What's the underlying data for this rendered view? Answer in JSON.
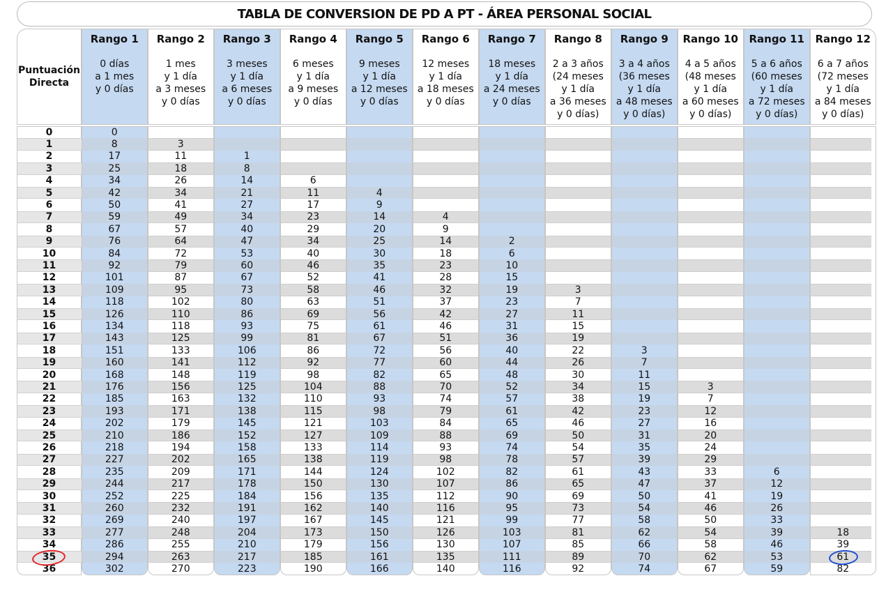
{
  "title": "TABLA DE CONVERSION DE PD A PT - ÁREA PERSONAL SOCIAL",
  "pd_header": [
    "Puntuación",
    "Directa"
  ],
  "pd": [
    "0",
    "1",
    "2",
    "3",
    "4",
    "5",
    "6",
    "7",
    "8",
    "9",
    "10",
    "11",
    "12",
    "13",
    "14",
    "15",
    "16",
    "17",
    "18",
    "19",
    "20",
    "21",
    "22",
    "23",
    "24",
    "25",
    "26",
    "27",
    "28",
    "29",
    "30",
    "31",
    "32",
    "33",
    "34",
    "35",
    "36"
  ],
  "columns": [
    {
      "name": "Rango 1",
      "age": [
        "0 días",
        "a 1 mes",
        "y 0 días"
      ],
      "start": 0,
      "values": [
        "0",
        "8",
        "17",
        "25",
        "34",
        "42",
        "50",
        "59",
        "67",
        "76",
        "84",
        "92",
        "101",
        "109",
        "118",
        "126",
        "134",
        "143",
        "151",
        "160",
        "168",
        "176",
        "185",
        "193",
        "202",
        "210",
        "218",
        "227",
        "235",
        "244",
        "252",
        "260",
        "269",
        "277",
        "286",
        "294",
        "302"
      ]
    },
    {
      "name": "Rango 2",
      "age": [
        "1 mes",
        "y 1 día",
        "a 3 meses",
        "y 0 días"
      ],
      "start": 1,
      "values": [
        "3",
        "11",
        "18",
        "26",
        "34",
        "41",
        "49",
        "57",
        "64",
        "72",
        "79",
        "87",
        "95",
        "102",
        "110",
        "118",
        "125",
        "133",
        "141",
        "148",
        "156",
        "163",
        "171",
        "179",
        "186",
        "194",
        "202",
        "209",
        "217",
        "225",
        "232",
        "240",
        "248",
        "255",
        "263",
        "270"
      ]
    },
    {
      "name": "Rango 3",
      "age": [
        "3 meses",
        "y 1 día",
        "a 6 meses",
        "y 0 días"
      ],
      "start": 2,
      "values": [
        "1",
        "8",
        "14",
        "21",
        "27",
        "34",
        "40",
        "47",
        "53",
        "60",
        "67",
        "73",
        "80",
        "86",
        "93",
        "99",
        "106",
        "112",
        "119",
        "125",
        "132",
        "138",
        "145",
        "152",
        "158",
        "165",
        "171",
        "178",
        "184",
        "191",
        "197",
        "204",
        "210",
        "217",
        "223"
      ]
    },
    {
      "name": "Rango 4",
      "age": [
        "6 meses",
        "y 1 día",
        "a 9 meses",
        "y 0 días"
      ],
      "start": 4,
      "values": [
        "6",
        "11",
        "17",
        "23",
        "29",
        "34",
        "40",
        "46",
        "52",
        "58",
        "63",
        "69",
        "75",
        "81",
        "86",
        "92",
        "98",
        "104",
        "110",
        "115",
        "121",
        "127",
        "133",
        "138",
        "144",
        "150",
        "156",
        "162",
        "167",
        "173",
        "179",
        "185",
        "190"
      ]
    },
    {
      "name": "Rango 5",
      "age": [
        "9 meses",
        "y 1 día",
        "a 12 meses",
        "y 0 días"
      ],
      "start": 5,
      "values": [
        "4",
        "9",
        "14",
        "20",
        "25",
        "30",
        "35",
        "41",
        "46",
        "51",
        "56",
        "61",
        "67",
        "72",
        "77",
        "82",
        "88",
        "93",
        "98",
        "103",
        "109",
        "114",
        "119",
        "124",
        "130",
        "135",
        "140",
        "145",
        "150",
        "156",
        "161",
        "166"
      ]
    },
    {
      "name": "Rango 6",
      "age": [
        "12 meses",
        "y 1 día",
        "a 18 meses",
        "y 0 días"
      ],
      "start": 7,
      "values": [
        "4",
        "9",
        "14",
        "18",
        "23",
        "28",
        "32",
        "37",
        "42",
        "46",
        "51",
        "56",
        "60",
        "65",
        "70",
        "74",
        "79",
        "84",
        "88",
        "93",
        "98",
        "102",
        "107",
        "112",
        "116",
        "121",
        "126",
        "130",
        "135",
        "140"
      ]
    },
    {
      "name": "Rango 7",
      "age": [
        "18 meses",
        "y 1 día",
        "a 24 meses",
        "y 0 días"
      ],
      "start": 9,
      "values": [
        "2",
        "6",
        "10",
        "15",
        "19",
        "23",
        "27",
        "31",
        "36",
        "40",
        "44",
        "48",
        "52",
        "57",
        "61",
        "65",
        "69",
        "74",
        "78",
        "82",
        "86",
        "90",
        "95",
        "99",
        "103",
        "107",
        "111",
        "116"
      ]
    },
    {
      "name": "Rango 8",
      "age": [
        "2 a 3 años",
        "(24 meses",
        "y 1 día",
        "a 36 meses",
        "y 0 días)"
      ],
      "start": 13,
      "values": [
        "3",
        "7",
        "11",
        "15",
        "19",
        "22",
        "26",
        "30",
        "34",
        "38",
        "42",
        "46",
        "50",
        "54",
        "57",
        "61",
        "65",
        "69",
        "73",
        "77",
        "81",
        "85",
        "89",
        "92"
      ]
    },
    {
      "name": "Rango 9",
      "age": [
        "3 a 4 años",
        "(36 meses",
        "y 1 día",
        "a 48 meses",
        "y 0 días)"
      ],
      "start": 18,
      "values": [
        "3",
        "7",
        "11",
        "15",
        "19",
        "23",
        "27",
        "31",
        "35",
        "39",
        "43",
        "47",
        "50",
        "54",
        "58",
        "62",
        "66",
        "70",
        "74"
      ]
    },
    {
      "name": "Rango 10",
      "age": [
        "4 a 5 años",
        "(48 meses",
        "y 1 día",
        "a 60 meses",
        "y 0 días)"
      ],
      "start": 21,
      "values": [
        "3",
        "7",
        "12",
        "16",
        "20",
        "24",
        "29",
        "33",
        "37",
        "41",
        "46",
        "50",
        "54",
        "58",
        "62",
        "67"
      ]
    },
    {
      "name": "Rango 11",
      "age": [
        "5 a 6 años",
        "(60 meses",
        "y 1 día",
        "a 72 meses",
        "y 0 días)"
      ],
      "start": 28,
      "values": [
        "6",
        "12",
        "19",
        "26",
        "33",
        "39",
        "46",
        "53",
        "59"
      ]
    },
    {
      "name": "Rango 12",
      "age": [
        "6 a 7 años",
        "(72 meses",
        "y 1 día",
        "a 84 meses",
        "y 0 días)"
      ],
      "start": 33,
      "values": [
        "18",
        "39",
        "61",
        "82"
      ]
    }
  ],
  "colors": {
    "blue": "#c5d9f1",
    "gray": "#e6e6e6",
    "red_mark": "#e0262b",
    "blue_mark": "#1f4fd1"
  },
  "annotations": {
    "red_circle_on_pd": "35",
    "blue_circle_on_value": "61"
  }
}
